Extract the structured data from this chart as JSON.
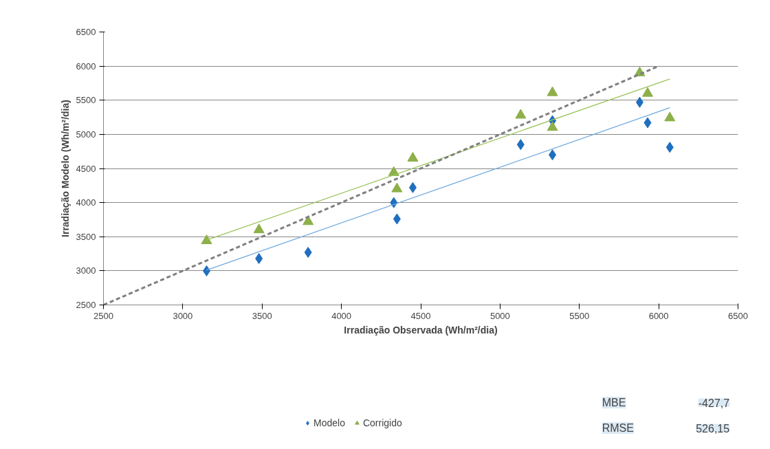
{
  "chart_data": {
    "type": "scatter",
    "xlabel": "Irradiação Observada (Wh/m²/dia)",
    "ylabel": "Irradiação Modelo (Wh/m²/dia)",
    "xlim": [
      2500,
      6500
    ],
    "ylim": [
      2500,
      6500
    ],
    "xticks": [
      2500,
      3000,
      3500,
      4000,
      4500,
      5000,
      5500,
      6000,
      6500
    ],
    "yticks": [
      2500,
      3000,
      3500,
      4000,
      4500,
      5000,
      5500,
      6000,
      6500
    ],
    "grid": "y",
    "legend": "bottom",
    "x": [
      3150,
      3480,
      3790,
      4330,
      4350,
      4450,
      5130,
      5330,
      5330,
      5880,
      5930,
      6070
    ],
    "series": [
      {
        "name": "Modelo",
        "color": "#1f6fbf",
        "marker": "diamond",
        "values": [
          3000,
          3180,
          3270,
          4000,
          3760,
          4220,
          4850,
          4700,
          5200,
          5470,
          5170,
          4810
        ]
      },
      {
        "name": "Corrigido",
        "color": "#8db04a",
        "marker": "triangle",
        "values": [
          3440,
          3600,
          3720,
          4440,
          4200,
          4650,
          5280,
          5610,
          5100,
          5900,
          5600,
          5240
        ]
      },
      {
        "type": "line",
        "color": "#6fa8dc",
        "x": [
          3150,
          6070
        ],
        "values": [
          3010,
          5390
        ]
      },
      {
        "type": "line",
        "color": "#9bc35a",
        "x": [
          3150,
          6070
        ],
        "values": [
          3450,
          5810
        ]
      },
      {
        "type": "line",
        "color": "#7f7f7f",
        "line_style": "dashed",
        "x": [
          2500,
          6000
        ],
        "values": [
          2500,
          6000
        ]
      }
    ],
    "annotations": [
      "MBE",
      "-427,7",
      "RMSE",
      "526,15"
    ]
  }
}
